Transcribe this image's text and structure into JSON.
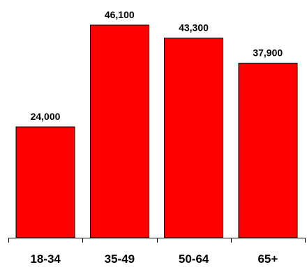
{
  "chart_data": {
    "type": "bar",
    "categories": [
      "18-34",
      "35-49",
      "50-64",
      "65+"
    ],
    "values": [
      24000,
      46100,
      43300,
      37900
    ],
    "value_labels": [
      "24,000",
      "46,100",
      "43,300",
      "37,900"
    ],
    "title": "",
    "xlabel": "",
    "ylabel": "",
    "ylim": [
      0,
      55000
    ],
    "grid": false,
    "legend": "none",
    "colors": {
      "bar_fill": "#ff0000",
      "bar_stroke": "#000000",
      "axis": "#000000",
      "text": "#000000"
    }
  }
}
